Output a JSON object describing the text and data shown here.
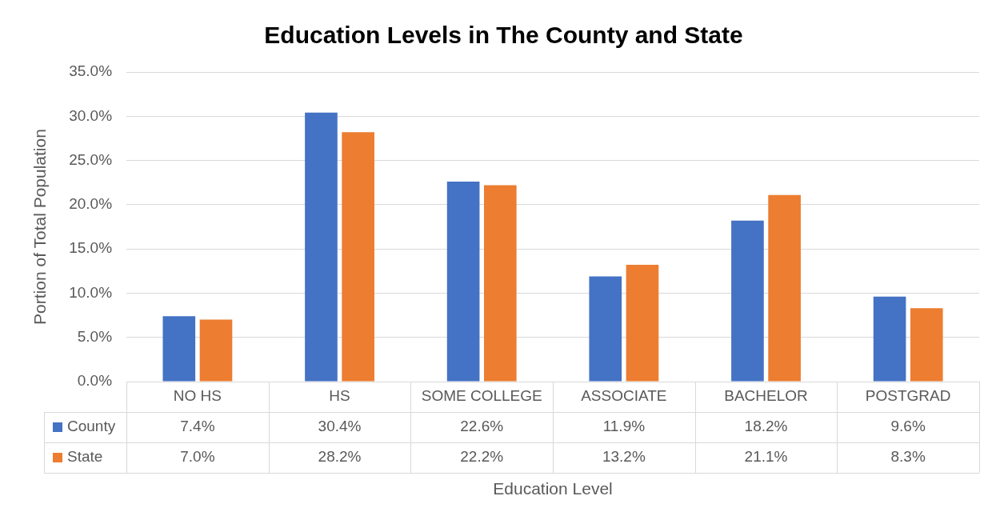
{
  "chart_data": {
    "type": "bar",
    "title": "Education Levels in The County and State",
    "xlabel": "Education Level",
    "ylabel": "Portion of Total Population",
    "categories": [
      "NO HS",
      "HS",
      "SOME COLLEGE",
      "ASSOCIATE",
      "BACHELOR",
      "POSTGRAD"
    ],
    "series": [
      {
        "name": "County",
        "color": "#4472c4",
        "values": [
          7.4,
          30.4,
          22.6,
          11.9,
          18.2,
          9.6
        ],
        "value_labels": [
          "7.4%",
          "30.4%",
          "22.6%",
          "11.9%",
          "18.2%",
          "9.6%"
        ]
      },
      {
        "name": "State",
        "color": "#ed7d31",
        "values": [
          7.0,
          28.2,
          22.2,
          13.2,
          21.1,
          8.3
        ],
        "value_labels": [
          "7.0%",
          "28.2%",
          "22.2%",
          "13.2%",
          "21.1%",
          "8.3%"
        ]
      }
    ],
    "ylim": [
      0,
      35
    ],
    "yticks": [
      {
        "value": 0,
        "label": "0.0%"
      },
      {
        "value": 5,
        "label": "5.0%"
      },
      {
        "value": 10,
        "label": "10.0%"
      },
      {
        "value": 15,
        "label": "15.0%"
      },
      {
        "value": 20,
        "label": "20.0%"
      },
      {
        "value": 25,
        "label": "25.0%"
      },
      {
        "value": 30,
        "label": "30.0%"
      },
      {
        "value": 35,
        "label": "35.0%"
      }
    ],
    "grid": "y",
    "legend": "bottom"
  }
}
